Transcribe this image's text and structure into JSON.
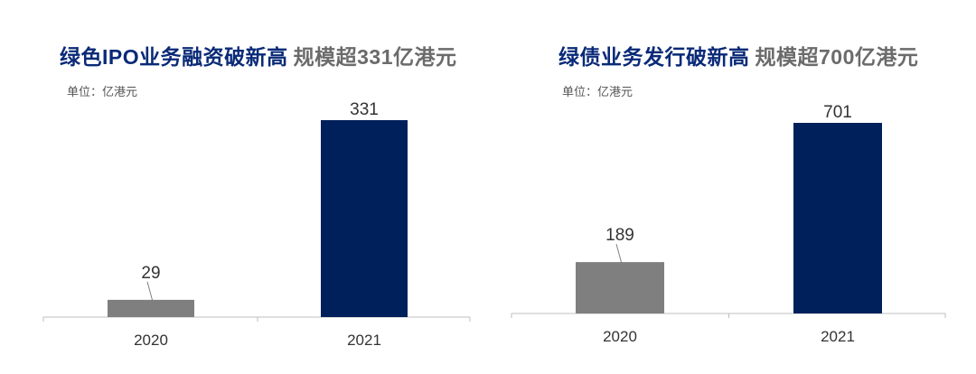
{
  "chart_data": [
    {
      "type": "bar",
      "title": "绿色IPO业务融资破新高",
      "subtitle": "规模超331亿港元",
      "unit_label": "单位：亿港元",
      "categories": [
        "2020",
        "2021"
      ],
      "values": [
        29,
        331
      ],
      "data_labels": [
        "29",
        "331"
      ],
      "colors": [
        "#7f7f7f",
        "#00205b"
      ],
      "ylim": [
        0,
        350
      ],
      "grid": false,
      "legend": "none"
    },
    {
      "type": "bar",
      "title": "绿债业务发行破新高",
      "subtitle": "规模超700亿港元",
      "unit_label": "单位：亿港元",
      "categories": [
        "2020",
        "2021"
      ],
      "values": [
        189,
        701
      ],
      "data_labels": [
        "189",
        "701"
      ],
      "colors": [
        "#7f7f7f",
        "#00205b"
      ],
      "ylim": [
        0,
        740
      ],
      "grid": false,
      "legend": "none"
    }
  ]
}
